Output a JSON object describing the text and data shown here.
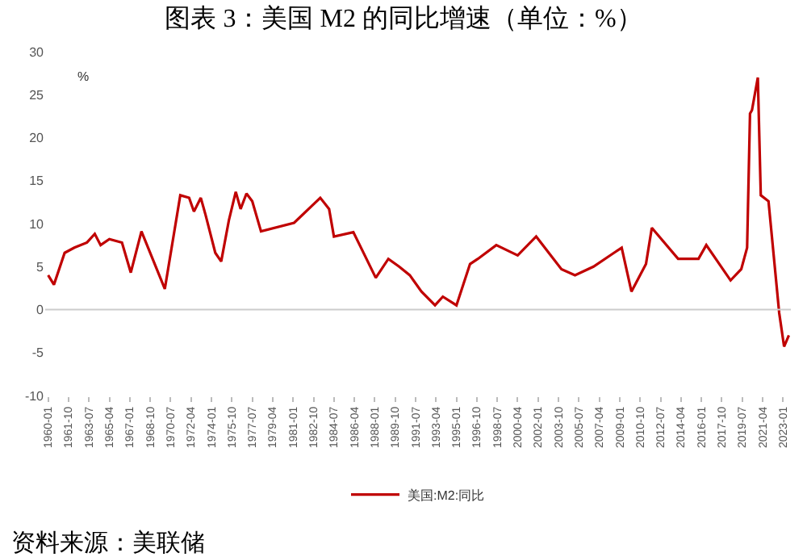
{
  "chart_data": {
    "type": "line",
    "title": "图表 3：美国 M2 的同比增速（单位：%）",
    "x": [
      "1960-01",
      "1960-07",
      "1961-06",
      "1962-04",
      "1963-05",
      "1964-01",
      "1964-07",
      "1965-04",
      "1966-05",
      "1967-02",
      "1968-01",
      "1970-01",
      "1971-05",
      "1972-02",
      "1972-07",
      "1973-02",
      "1973-07",
      "1974-05",
      "1974-11",
      "1975-07",
      "1976-02",
      "1976-07",
      "1977-01",
      "1977-07",
      "1978-04",
      "1981-02",
      "1983-05",
      "1984-02",
      "1984-07",
      "1986-03",
      "1988-02",
      "1989-03",
      "1990-02",
      "1991-01",
      "1992-01",
      "1993-03",
      "1993-11",
      "1995-01",
      "1996-03",
      "1996-11",
      "1998-06",
      "2000-04",
      "2001-11",
      "2004-01",
      "2005-03",
      "2006-10",
      "2008-07",
      "2009-03",
      "2010-01",
      "2011-04",
      "2011-10",
      "2014-01",
      "2015-10",
      "2016-06",
      "2017-11",
      "2018-07",
      "2019-06",
      "2019-12",
      "2020-03",
      "2020-05",
      "2020-11",
      "2021-02",
      "2021-10",
      "2022-09",
      "2023-02",
      "2023-07"
    ],
    "series": [
      {
        "name": "美国:M2:同比",
        "color": "#c00000",
        "values": [
          4.0,
          2.9,
          6.6,
          7.2,
          7.8,
          8.8,
          7.5,
          8.2,
          7.8,
          4.3,
          9.1,
          2.4,
          13.3,
          13.0,
          11.4,
          13.0,
          11.0,
          6.6,
          5.6,
          10.4,
          13.7,
          11.7,
          13.5,
          12.6,
          9.1,
          10.1,
          13.0,
          11.7,
          8.5,
          9.0,
          3.7,
          5.9,
          5.0,
          4.0,
          2.1,
          0.5,
          1.5,
          0.5,
          5.3,
          5.9,
          7.5,
          6.3,
          8.5,
          4.7,
          4.0,
          5.0,
          6.6,
          7.2,
          2.1,
          5.3,
          9.5,
          5.9,
          5.9,
          7.5,
          4.7,
          3.4,
          4.7,
          7.2,
          22.8,
          23.2,
          27.0,
          13.3,
          12.6,
          -0.4,
          -4.3,
          -3.0
        ]
      }
    ],
    "xlim": [
      "1959-10",
      "2023-09"
    ],
    "xticks": [
      "1960-01",
      "1961-10",
      "1963-07",
      "1965-04",
      "1967-01",
      "1968-10",
      "1970-07",
      "1972-04",
      "1974-01",
      "1975-10",
      "1977-07",
      "1979-04",
      "1981-01",
      "1982-10",
      "1984-07",
      "1986-04",
      "1988-01",
      "1989-10",
      "1991-07",
      "1993-04",
      "1995-01",
      "1996-10",
      "1998-07",
      "2000-04",
      "2002-01",
      "2003-10",
      "2005-07",
      "2007-04",
      "2009-01",
      "2010-10",
      "2012-07",
      "2014-04",
      "2016-01",
      "2017-10",
      "2019-07",
      "2021-04",
      "2023-01"
    ],
    "ylim": [
      -10,
      30
    ],
    "yticks": [
      -10,
      -5,
      0,
      5,
      10,
      15,
      20,
      25,
      30
    ],
    "ref_lines": [
      {
        "axis": "y",
        "value": 0,
        "color": "#cccccc"
      }
    ],
    "legend": "bottom",
    "marker": "none",
    "line_style": "solid",
    "annotations": [
      "%",
      "资料来源：美联储"
    ]
  }
}
